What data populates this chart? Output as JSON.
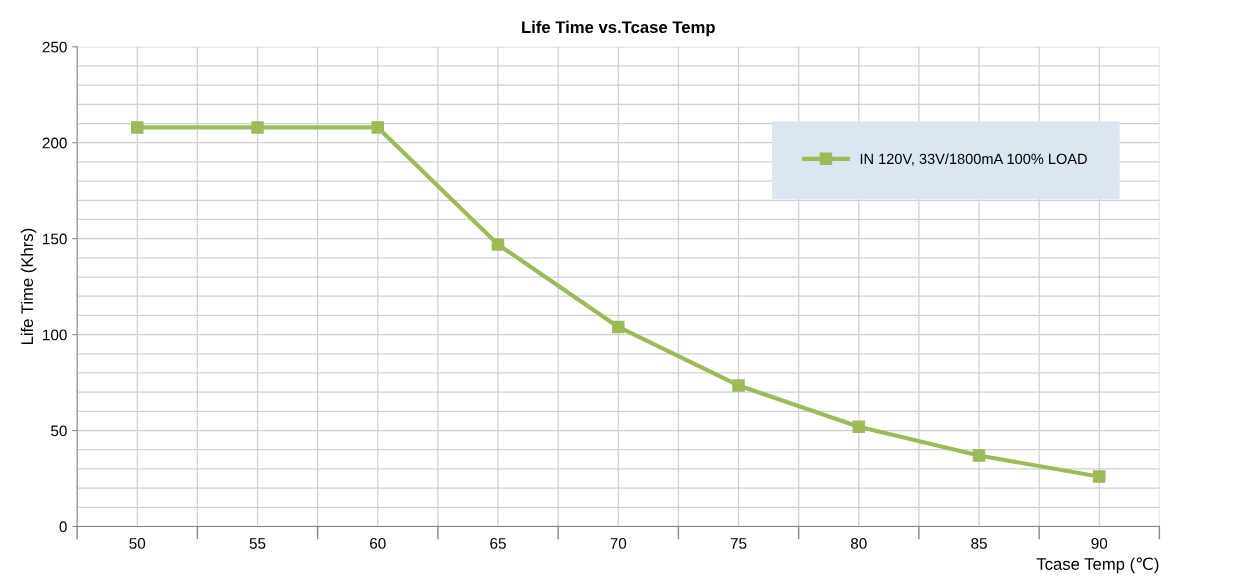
{
  "chart_data": {
    "type": "line",
    "title": "Life Time vs.Tcase Temp",
    "xlabel": "Tcase Temp (℃)",
    "ylabel": "Life Time (Khrs)",
    "categories": [
      "50",
      "55",
      "60",
      "65",
      "70",
      "75",
      "80",
      "85",
      "90"
    ],
    "series": [
      {
        "name": "IN 120V, 33V/1800mA 100% LOAD",
        "color": "#9bbb59",
        "values": [
          208,
          208,
          208,
          147,
          104,
          73.5,
          52,
          37,
          26
        ]
      }
    ],
    "ylim": [
      0,
      250
    ],
    "yticks": [
      0,
      50,
      100,
      150,
      200,
      250
    ],
    "grid": true,
    "legend": "top right",
    "marker": "square",
    "line_style": "solid"
  }
}
